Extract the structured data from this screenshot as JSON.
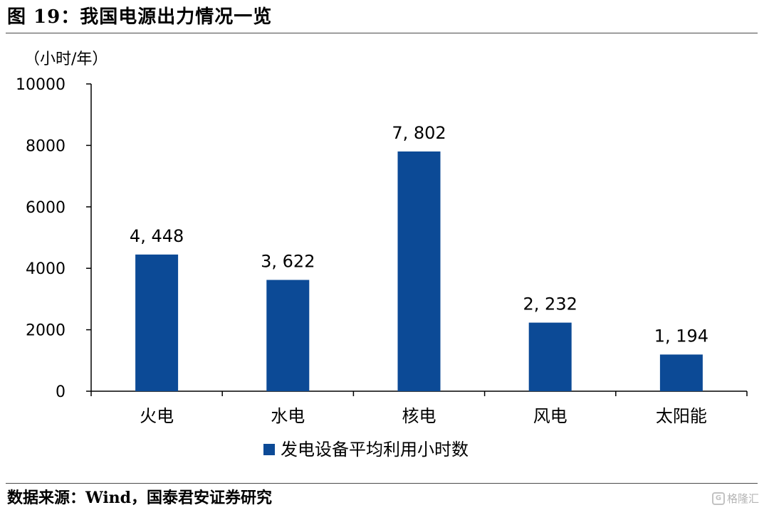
{
  "header": {
    "title": "图 19：我国电源出力情况一览"
  },
  "footer": {
    "source": "数据来源：Wind，国泰君安证券研究",
    "watermark": "格隆汇"
  },
  "colors": {
    "bar": "#0c4a96",
    "axis": "#000000",
    "rule": "#4a4a4a"
  },
  "chart_data": {
    "type": "bar",
    "title": "",
    "ylabel": "（小时/年）",
    "xlabel": "",
    "categories": [
      "火电",
      "水电",
      "核电",
      "风电",
      "太阳能"
    ],
    "series": [
      {
        "name": "发电设备平均利用小时数",
        "values": [
          4448,
          3622,
          7802,
          2232,
          1194
        ]
      }
    ],
    "data_labels": [
      "4, 448",
      "3, 622",
      "7, 802",
      "2, 232",
      "1, 194"
    ],
    "ylim": [
      0,
      10000
    ],
    "yticks": [
      0,
      2000,
      4000,
      6000,
      8000,
      10000
    ],
    "grid": false,
    "legend_position": "bottom"
  }
}
